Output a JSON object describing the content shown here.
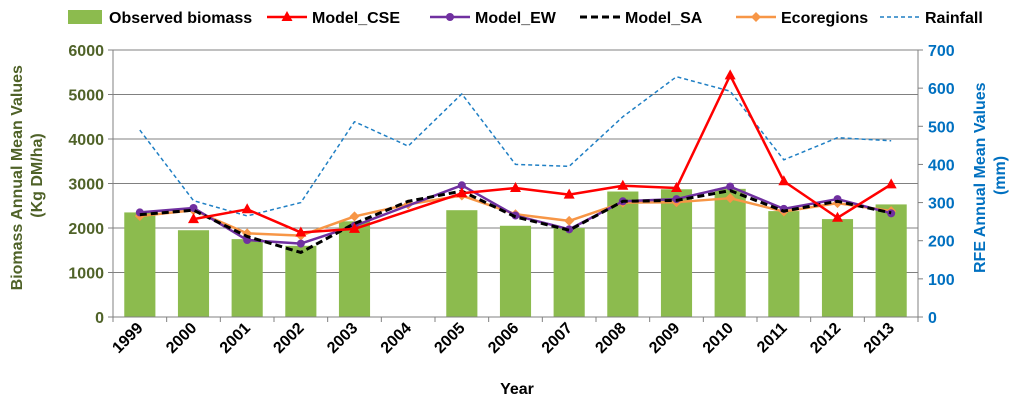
{
  "chart_data": {
    "type": "bar+line",
    "title": "",
    "xlabel": "Year",
    "ylabel_left": [
      "Biomass Annual Mean Values",
      "(Kg DM/ha)"
    ],
    "ylabel_right": [
      "RFE Annual Mean Values",
      "(mm)"
    ],
    "categories": [
      "1999",
      "2000",
      "2001",
      "2002",
      "2003",
      "2004",
      "2005",
      "2006",
      "2007",
      "2008",
      "2009",
      "2010",
      "2011",
      "2012",
      "2013"
    ],
    "ylim_left": [
      0,
      6000
    ],
    "yticks_left": [
      "0",
      "1000",
      "2000",
      "3000",
      "4000",
      "5000",
      "6000"
    ],
    "ylim_right": [
      0,
      700
    ],
    "yticks_right": [
      "0",
      "100",
      "200",
      "300",
      "400",
      "500",
      "600",
      "700"
    ],
    "grid": true,
    "legend_position": "top",
    "colors": {
      "left_axis": "#4f6228",
      "right_axis": "#0070c0",
      "observed": "#8cbb4e",
      "cse": "#ff0000",
      "ew": "#7030a0",
      "sa": "#000000",
      "eco": "#f79646",
      "rain": "#1f7fc4"
    },
    "series": [
      {
        "name": "Observed biomass",
        "kind": "bar",
        "axis": "left",
        "values": [
          2350,
          1950,
          1750,
          1600,
          2150,
          null,
          2400,
          2050,
          2000,
          2820,
          2870,
          2880,
          2380,
          2200,
          2530
        ]
      },
      {
        "name": "Model_CSE",
        "kind": "line",
        "axis": "left",
        "marker": "triangle",
        "values": [
          null,
          2200,
          2420,
          1900,
          1980,
          null,
          2780,
          2900,
          2750,
          2950,
          2900,
          5430,
          3050,
          2230,
          2980
        ]
      },
      {
        "name": "Model_EW",
        "kind": "line",
        "axis": "left",
        "marker": "circle",
        "values": [
          2350,
          2450,
          1730,
          1650,
          2050,
          null,
          2960,
          2280,
          1970,
          2600,
          2650,
          2930,
          2430,
          2650,
          2330
        ]
      },
      {
        "name": "Model_SA",
        "kind": "line",
        "axis": "left",
        "dash": true,
        "values": [
          2300,
          2400,
          1810,
          1450,
          2100,
          2600,
          2830,
          2250,
          1950,
          2600,
          2620,
          2840,
          2380,
          2600,
          2340
        ]
      },
      {
        "name": "Ecoregions",
        "kind": "line",
        "axis": "left",
        "marker": "diamond",
        "values": [
          2270,
          2400,
          1880,
          1830,
          2260,
          2530,
          2730,
          2310,
          2160,
          2570,
          2580,
          2670,
          2370,
          2560,
          2380
        ]
      },
      {
        "name": "Rainfall",
        "kind": "line",
        "axis": "right",
        "dash": true,
        "values": [
          490,
          305,
          265,
          300,
          512,
          448,
          585,
          400,
          395,
          525,
          630,
          592,
          412,
          470,
          462
        ]
      }
    ]
  }
}
